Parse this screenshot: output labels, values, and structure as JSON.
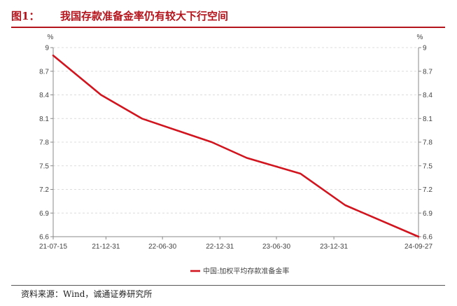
{
  "header": {
    "figure_label": "图1：",
    "title": "我国存款准备金率仍有较大下行空间"
  },
  "source": "资料来源：Wind，诚通证券研究所",
  "colors": {
    "accent": "#b4141c",
    "series": "#d1141e"
  },
  "chart_data": {
    "type": "line",
    "title": "我国存款准备金率仍有较大下行空间",
    "left_unit": "%",
    "right_unit": "%",
    "ylim": [
      6.6,
      9.0
    ],
    "yticks": [
      "9",
      "8.7",
      "8.4",
      "8.1",
      "7.8",
      "7.5",
      "7.2",
      "6.9",
      "6.6"
    ],
    "xlim": [
      "2021-07-15",
      "2024-09-27"
    ],
    "xticks": [
      {
        "label": "21-07-15",
        "date": "2021-07-15"
      },
      {
        "label": "21-12-31",
        "date": "2021-12-31"
      },
      {
        "label": "22-06-30",
        "date": "2022-06-30"
      },
      {
        "label": "22-12-31",
        "date": "2022-12-31"
      },
      {
        "label": "23-06-30",
        "date": "2023-06-30"
      },
      {
        "label": "23-12-31",
        "date": "2023-12-31"
      },
      {
        "label": "24-09-27",
        "date": "2024-09-27"
      }
    ],
    "grid": true,
    "legend_position": "bottom",
    "series": [
      {
        "name": "中国:加权平均存款准备金率",
        "color": "#d1141e",
        "points": [
          {
            "x": "2021-07-15",
            "y": 8.9
          },
          {
            "x": "2021-12-15",
            "y": 8.4
          },
          {
            "x": "2022-04-25",
            "y": 8.1
          },
          {
            "x": "2022-12-05",
            "y": 7.8
          },
          {
            "x": "2023-03-27",
            "y": 7.6
          },
          {
            "x": "2023-09-15",
            "y": 7.4
          },
          {
            "x": "2024-02-05",
            "y": 7.0
          },
          {
            "x": "2024-09-27",
            "y": 6.6
          }
        ]
      }
    ]
  }
}
